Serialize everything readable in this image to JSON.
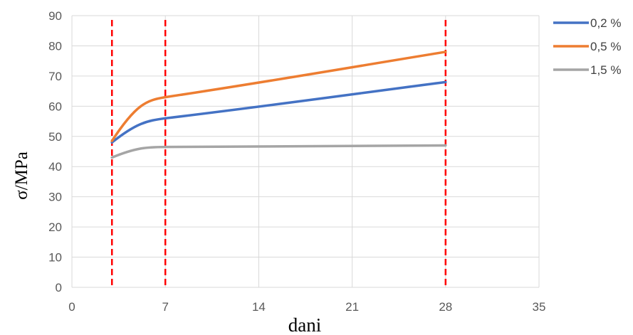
{
  "chart_data": {
    "type": "line",
    "title": "",
    "xlabel": "dani",
    "ylabel": "σ/MPa",
    "xlim": [
      0,
      35
    ],
    "ylim": [
      0,
      90
    ],
    "xticks": [
      0,
      7,
      14,
      21,
      28,
      35
    ],
    "yticks": [
      0,
      10,
      20,
      30,
      40,
      50,
      60,
      70,
      80,
      90
    ],
    "grid": true,
    "legend_position": "right",
    "x": [
      3,
      7,
      28
    ],
    "series": [
      {
        "name": "0,2 %",
        "color": "#4472C4",
        "values": [
          48,
          56,
          68
        ]
      },
      {
        "name": "0,5 %",
        "color": "#ED7D31",
        "values": [
          48.5,
          63,
          78
        ]
      },
      {
        "name": "1,5 %",
        "color": "#A5A5A5",
        "values": [
          43,
          46.5,
          47
        ]
      }
    ],
    "reference_lines": {
      "x": [
        3,
        7,
        28
      ],
      "color": "#FF0000",
      "style": "dashed"
    }
  }
}
